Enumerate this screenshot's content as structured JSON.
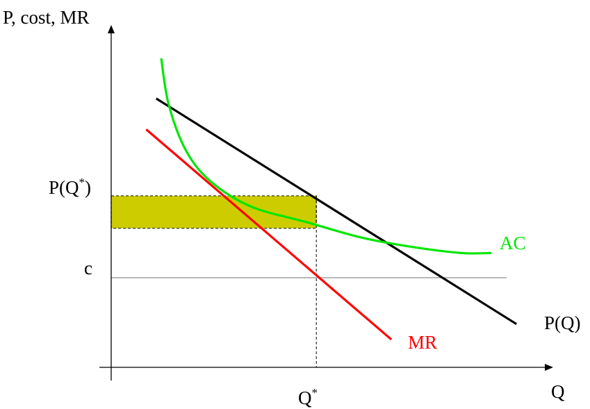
{
  "chart_data": {
    "type": "line",
    "title": "",
    "ylabel": "P, cost, MR",
    "xlabel": "Q",
    "colors": {
      "demand": "#000000",
      "mr": "#ff0000",
      "ac": "#00e600",
      "cost_line": "#808080",
      "profit_area": "#cccc00",
      "axes": "#000000"
    },
    "series": [
      {
        "name": "P(Q)",
        "key": "demand",
        "type": "line",
        "points": [
          [
            0.9,
            0.87
          ],
          [
            8.1,
            0.14
          ]
        ]
      },
      {
        "name": "MR",
        "key": "mr",
        "type": "line",
        "points": [
          [
            0.7,
            0.77
          ],
          [
            5.6,
            0.09
          ]
        ]
      },
      {
        "name": "AC",
        "key": "ac",
        "type": "curve",
        "points": [
          [
            1.0,
            1.0
          ],
          [
            1.15,
            0.85
          ],
          [
            1.5,
            0.7
          ],
          [
            2.0,
            0.6
          ],
          [
            2.8,
            0.52
          ],
          [
            3.9,
            0.47
          ],
          [
            5.0,
            0.42
          ],
          [
            6.0,
            0.39
          ],
          [
            7.0,
            0.37
          ],
          [
            7.6,
            0.37
          ]
        ]
      }
    ],
    "horizontal_lines": [
      {
        "label": "c",
        "y": 0.29,
        "x_end": 7.9
      }
    ],
    "profit_rectangle": {
      "x_start": 0,
      "x_end": 4.1,
      "y_low": 0.45,
      "y_high": 0.555
    },
    "ticks": {
      "y": [
        {
          "label": "P(Q",
          "sup": "*",
          "after": ")",
          "y": 0.555
        },
        {
          "label": "c",
          "sup": "",
          "after": "",
          "y": 0.29
        }
      ],
      "x": [
        {
          "label": "Q",
          "sup": "*",
          "after": "",
          "x": 4.1
        }
      ]
    },
    "xlim": [
      0,
      8.8
    ],
    "ylim": [
      0,
      1.05
    ],
    "grid": false,
    "legend": "none"
  }
}
